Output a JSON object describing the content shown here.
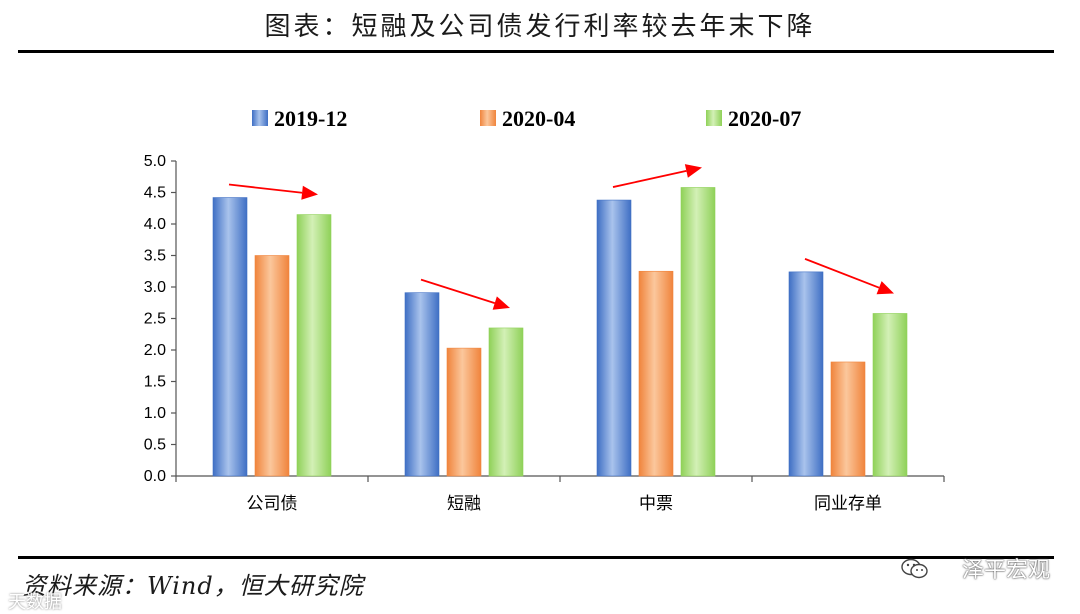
{
  "header": {
    "title": "图表：短融及公司债发行利率较去年末下降"
  },
  "footer": {
    "source": "资料来源：Wind，恒大研究院",
    "watermark": "泽平宏观",
    "watermark2": "天数据"
  },
  "colors": {
    "series": [
      "#3f6fc4",
      "#f0843c",
      "#8fd158"
    ],
    "series_light": [
      "#a9c3ec",
      "#fbc79c",
      "#d3f0b6"
    ],
    "arrow": "#ff0000"
  },
  "chart_data": {
    "type": "bar",
    "title": "",
    "xlabel": "",
    "ylabel": "",
    "categories": [
      "公司债",
      "短融",
      "中票",
      "同业存单"
    ],
    "series": [
      {
        "name": "2019-12",
        "values": [
          4.42,
          2.91,
          4.38,
          3.24
        ]
      },
      {
        "name": "2020-04",
        "values": [
          3.5,
          2.03,
          3.25,
          1.81
        ]
      },
      {
        "name": "2020-07",
        "values": [
          4.15,
          2.35,
          4.58,
          2.58
        ]
      }
    ],
    "ylim": [
      0,
      5.0
    ],
    "yticks": [
      "0.0",
      "0.5",
      "1.0",
      "1.5",
      "2.0",
      "2.5",
      "3.0",
      "3.5",
      "4.0",
      "4.5",
      "5.0"
    ],
    "legend_position": "top",
    "grid": false,
    "annotations": "red arrows indicating trend from 2019-12 to 2020-07 in each category"
  }
}
